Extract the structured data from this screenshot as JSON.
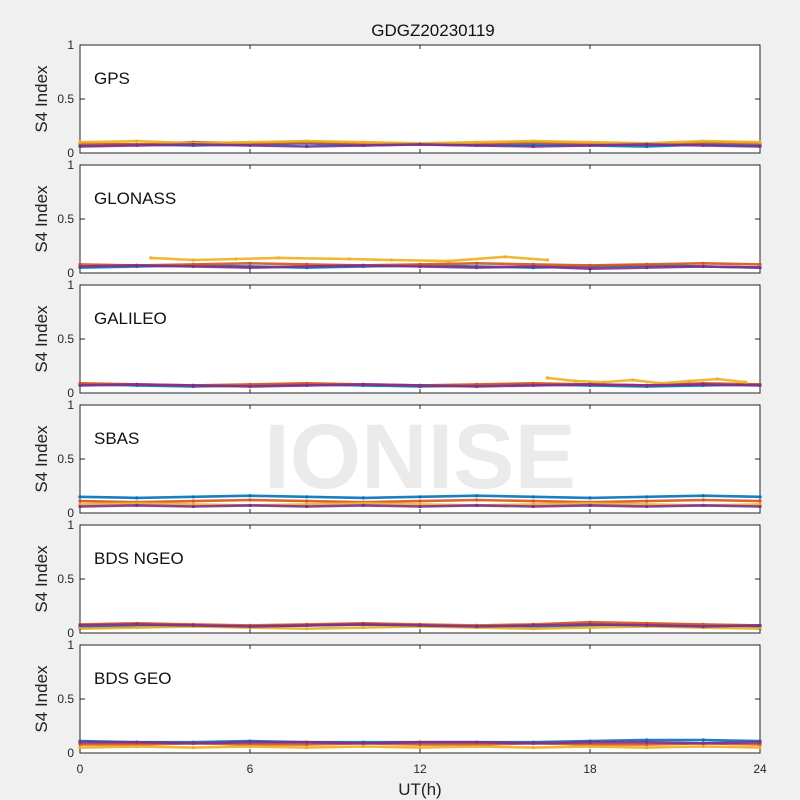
{
  "chart_data": {
    "type": "scatter",
    "title": "GDGZ20230119",
    "xlabel": "UT(h)",
    "ylabel": "S4 Index",
    "xlim": [
      0,
      24
    ],
    "ylim": [
      0,
      1
    ],
    "xticks": [
      "0",
      "6",
      "12",
      "18",
      "24"
    ],
    "yticks": [
      "0",
      "0.5",
      "1"
    ],
    "grid": false,
    "watermark": "IONISE",
    "series_colors": [
      "#0072BD",
      "#D95319",
      "#EDB120",
      "#7E2F8E",
      "#77AC30",
      "#4DBEEE",
      "#A2142F"
    ],
    "panels": [
      {
        "label": "GPS",
        "series": [
          {
            "x": [
              0,
              2,
              4,
              6,
              8,
              10,
              12,
              14,
              16,
              18,
              20,
              22,
              24
            ],
            "y": [
              0.07,
              0.08,
              0.07,
              0.08,
              0.09,
              0.07,
              0.08,
              0.07,
              0.08,
              0.07,
              0.06,
              0.08,
              0.07
            ]
          },
          {
            "x": [
              0,
              2,
              4,
              6,
              8,
              10,
              12,
              14,
              16,
              18,
              20,
              22,
              24
            ],
            "y": [
              0.09,
              0.08,
              0.1,
              0.09,
              0.1,
              0.09,
              0.08,
              0.09,
              0.1,
              0.09,
              0.08,
              0.1,
              0.09
            ]
          },
          {
            "x": [
              0,
              2,
              4,
              6,
              8,
              10,
              12,
              14,
              16,
              18,
              20,
              22,
              24
            ],
            "y": [
              0.1,
              0.11,
              0.09,
              0.1,
              0.11,
              0.1,
              0.09,
              0.1,
              0.11,
              0.1,
              0.09,
              0.11,
              0.1
            ]
          },
          {
            "x": [
              0,
              2,
              4,
              6,
              8,
              10,
              12,
              14,
              16,
              18,
              20,
              22,
              24
            ],
            "y": [
              0.06,
              0.07,
              0.08,
              0.07,
              0.06,
              0.07,
              0.08,
              0.07,
              0.06,
              0.07,
              0.08,
              0.07,
              0.06
            ]
          }
        ]
      },
      {
        "label": "GLONASS",
        "series": [
          {
            "x": [
              0,
              2,
              4,
              6,
              8,
              10,
              12,
              14,
              16,
              18,
              20,
              22,
              24
            ],
            "y": [
              0.05,
              0.06,
              0.07,
              0.06,
              0.05,
              0.06,
              0.07,
              0.06,
              0.05,
              0.06,
              0.07,
              0.06,
              0.05
            ]
          },
          {
            "x": [
              0,
              2,
              4,
              6,
              8,
              10,
              12,
              14,
              16,
              18,
              20,
              22,
              24
            ],
            "y": [
              0.08,
              0.07,
              0.08,
              0.09,
              0.08,
              0.07,
              0.08,
              0.09,
              0.08,
              0.07,
              0.08,
              0.09,
              0.08
            ]
          },
          {
            "x": [
              2.5,
              4,
              5.5,
              7,
              9.5,
              11,
              13,
              15,
              16.5
            ],
            "y": [
              0.14,
              0.12,
              0.13,
              0.14,
              0.13,
              0.12,
              0.11,
              0.15,
              0.12
            ]
          },
          {
            "x": [
              0,
              2,
              4,
              6,
              8,
              10,
              12,
              14,
              16,
              18,
              20,
              22,
              24
            ],
            "y": [
              0.06,
              0.07,
              0.06,
              0.05,
              0.06,
              0.07,
              0.06,
              0.05,
              0.06,
              0.04,
              0.05,
              0.06,
              0.05
            ]
          }
        ]
      },
      {
        "label": "GALILEO",
        "series": [
          {
            "x": [
              0,
              2,
              4,
              6,
              8,
              10,
              12,
              14,
              16,
              18,
              20,
              22,
              24
            ],
            "y": [
              0.08,
              0.07,
              0.06,
              0.07,
              0.08,
              0.07,
              0.06,
              0.07,
              0.08,
              0.07,
              0.06,
              0.07,
              0.08
            ]
          },
          {
            "x": [
              0,
              2,
              4,
              6,
              8,
              10,
              12,
              14,
              16,
              18,
              20,
              22,
              24
            ],
            "y": [
              0.09,
              0.08,
              0.07,
              0.08,
              0.09,
              0.08,
              0.07,
              0.08,
              0.09,
              0.08,
              0.07,
              0.09,
              0.08
            ]
          },
          {
            "x": [
              16.5,
              17.5,
              18.5,
              19.5,
              20.5,
              21.5,
              22.5,
              23.5
            ],
            "y": [
              0.14,
              0.11,
              0.1,
              0.12,
              0.09,
              0.11,
              0.13,
              0.1
            ]
          },
          {
            "x": [
              0,
              2,
              4,
              6,
              8,
              10,
              12,
              14,
              16,
              18,
              20,
              22,
              24
            ],
            "y": [
              0.07,
              0.08,
              0.07,
              0.06,
              0.07,
              0.08,
              0.07,
              0.06,
              0.07,
              0.08,
              0.07,
              0.08,
              0.07
            ]
          }
        ]
      },
      {
        "label": "SBAS",
        "series": [
          {
            "x": [
              0,
              2,
              4,
              6,
              8,
              10,
              12,
              14,
              16,
              18,
              20,
              22,
              24
            ],
            "y": [
              0.15,
              0.14,
              0.15,
              0.16,
              0.15,
              0.14,
              0.15,
              0.16,
              0.15,
              0.14,
              0.15,
              0.16,
              0.15
            ]
          },
          {
            "x": [
              0,
              2,
              4,
              6,
              8,
              10,
              12,
              14,
              16,
              18,
              20,
              22,
              24
            ],
            "y": [
              0.11,
              0.1,
              0.11,
              0.12,
              0.11,
              0.1,
              0.11,
              0.12,
              0.11,
              0.1,
              0.11,
              0.12,
              0.11
            ]
          },
          {
            "x": [
              0,
              2,
              4,
              6,
              8,
              10,
              12,
              14,
              16,
              18,
              20,
              22,
              24
            ],
            "y": [
              0.08,
              0.09,
              0.08,
              0.07,
              0.08,
              0.09,
              0.08,
              0.07,
              0.08,
              0.09,
              0.08,
              0.07,
              0.08
            ]
          },
          {
            "x": [
              0,
              2,
              4,
              6,
              8,
              10,
              12,
              14,
              16,
              18,
              20,
              22,
              24
            ],
            "y": [
              0.06,
              0.07,
              0.06,
              0.07,
              0.06,
              0.07,
              0.06,
              0.07,
              0.06,
              0.07,
              0.06,
              0.07,
              0.06
            ]
          }
        ]
      },
      {
        "label": "BDS NGEO",
        "series": [
          {
            "x": [
              0,
              2,
              4,
              6,
              8,
              10,
              12,
              14,
              16,
              18,
              20,
              22,
              24
            ],
            "y": [
              0.05,
              0.06,
              0.07,
              0.06,
              0.07,
              0.08,
              0.07,
              0.06,
              0.05,
              0.07,
              0.08,
              0.07,
              0.06
            ]
          },
          {
            "x": [
              0,
              2,
              4,
              6,
              8,
              10,
              12,
              14,
              16,
              18,
              20,
              22,
              24
            ],
            "y": [
              0.08,
              0.09,
              0.08,
              0.07,
              0.08,
              0.09,
              0.08,
              0.07,
              0.08,
              0.1,
              0.09,
              0.08,
              0.07
            ]
          },
          {
            "x": [
              0,
              2,
              4,
              6,
              8,
              10,
              12,
              14,
              16,
              18,
              20,
              22,
              24
            ],
            "y": [
              0.04,
              0.05,
              0.06,
              0.05,
              0.04,
              0.05,
              0.06,
              0.05,
              0.04,
              0.05,
              0.06,
              0.05,
              0.04
            ]
          },
          {
            "x": [
              0,
              2,
              4,
              6,
              8,
              10,
              12,
              14,
              16,
              18,
              20,
              22,
              24
            ],
            "y": [
              0.07,
              0.08,
              0.07,
              0.06,
              0.07,
              0.08,
              0.07,
              0.06,
              0.07,
              0.08,
              0.07,
              0.06,
              0.07
            ]
          }
        ]
      },
      {
        "label": "BDS GEO",
        "series": [
          {
            "x": [
              0,
              2,
              4,
              6,
              8,
              10,
              12,
              14,
              16,
              18,
              20,
              22,
              24
            ],
            "y": [
              0.11,
              0.1,
              0.1,
              0.11,
              0.1,
              0.1,
              0.1,
              0.1,
              0.1,
              0.11,
              0.12,
              0.12,
              0.11
            ]
          },
          {
            "x": [
              0,
              2,
              4,
              6,
              8,
              10,
              12,
              14,
              16,
              18,
              20,
              22,
              24
            ],
            "y": [
              0.08,
              0.08,
              0.09,
              0.08,
              0.08,
              0.09,
              0.08,
              0.08,
              0.09,
              0.08,
              0.08,
              0.09,
              0.08
            ]
          },
          {
            "x": [
              0,
              2,
              4,
              6,
              8,
              10,
              12,
              14,
              16,
              18,
              20,
              22,
              24
            ],
            "y": [
              0.05,
              0.06,
              0.05,
              0.06,
              0.05,
              0.06,
              0.05,
              0.06,
              0.05,
              0.06,
              0.05,
              0.06,
              0.05
            ]
          },
          {
            "x": [
              0,
              2,
              4,
              6,
              8,
              10,
              12,
              14,
              16,
              18,
              20,
              22,
              24
            ],
            "y": [
              0.1,
              0.1,
              0.09,
              0.1,
              0.1,
              0.09,
              0.1,
              0.1,
              0.09,
              0.1,
              0.1,
              0.09,
              0.1
            ]
          }
        ]
      }
    ]
  }
}
